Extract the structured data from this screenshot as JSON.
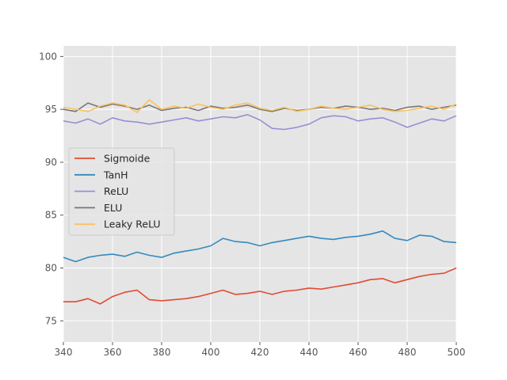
{
  "chart_data": {
    "type": "line",
    "title": "",
    "xlabel": "",
    "ylabel": "",
    "xlim": [
      340,
      500
    ],
    "ylim": [
      73,
      101
    ],
    "grid": true,
    "legend_position": "center-left",
    "background": "#e5e5e5",
    "x_ticks": [
      340,
      360,
      380,
      400,
      420,
      440,
      460,
      480,
      500
    ],
    "y_ticks": [
      75,
      80,
      85,
      90,
      95,
      100
    ],
    "series": [
      {
        "name": "Sigmoide",
        "color": "#e24a33",
        "x": [
          340,
          345,
          350,
          355,
          360,
          365,
          370,
          375,
          380,
          385,
          390,
          395,
          400,
          405,
          410,
          415,
          420,
          425,
          430,
          435,
          440,
          445,
          450,
          455,
          460,
          465,
          470,
          475,
          480,
          485,
          490,
          495,
          500
        ],
        "values": [
          76.8,
          76.8,
          77.1,
          76.6,
          77.3,
          77.7,
          77.9,
          77.0,
          76.9,
          77.0,
          77.1,
          77.3,
          77.6,
          77.9,
          77.5,
          77.6,
          77.8,
          77.5,
          77.8,
          77.9,
          78.1,
          78.0,
          78.2,
          78.4,
          78.6,
          78.9,
          79.0,
          78.6,
          78.9,
          79.2,
          79.4,
          79.5,
          80.0
        ]
      },
      {
        "name": "TanH",
        "color": "#348abd",
        "x": [
          340,
          345,
          350,
          355,
          360,
          365,
          370,
          375,
          380,
          385,
          390,
          395,
          400,
          405,
          410,
          415,
          420,
          425,
          430,
          435,
          440,
          445,
          450,
          455,
          460,
          465,
          470,
          475,
          480,
          485,
          490,
          495,
          500
        ],
        "values": [
          81.0,
          80.6,
          81.0,
          81.2,
          81.3,
          81.1,
          81.5,
          81.2,
          81.0,
          81.4,
          81.6,
          81.8,
          82.1,
          82.8,
          82.5,
          82.4,
          82.1,
          82.4,
          82.6,
          82.8,
          83.0,
          82.8,
          82.7,
          82.9,
          83.0,
          83.2,
          83.5,
          82.8,
          82.6,
          83.1,
          83.0,
          82.5,
          82.4
        ]
      },
      {
        "name": "ReLU",
        "color": "#988ed5",
        "x": [
          340,
          345,
          350,
          355,
          360,
          365,
          370,
          375,
          380,
          385,
          390,
          395,
          400,
          405,
          410,
          415,
          420,
          425,
          430,
          435,
          440,
          445,
          450,
          455,
          460,
          465,
          470,
          475,
          480,
          485,
          490,
          495,
          500
        ],
        "values": [
          93.9,
          93.7,
          94.1,
          93.6,
          94.2,
          93.9,
          93.8,
          93.6,
          93.8,
          94.0,
          94.2,
          93.9,
          94.1,
          94.3,
          94.2,
          94.5,
          94.0,
          93.2,
          93.1,
          93.3,
          93.6,
          94.2,
          94.4,
          94.3,
          93.9,
          94.1,
          94.2,
          93.8,
          93.3,
          93.7,
          94.1,
          93.9,
          94.4
        ]
      },
      {
        "name": "ELU",
        "color": "#777777",
        "x": [
          340,
          345,
          350,
          355,
          360,
          365,
          370,
          375,
          380,
          385,
          390,
          395,
          400,
          405,
          410,
          415,
          420,
          425,
          430,
          435,
          440,
          445,
          450,
          455,
          460,
          465,
          470,
          475,
          480,
          485,
          490,
          495,
          500
        ],
        "values": [
          95.0,
          94.8,
          95.6,
          95.2,
          95.5,
          95.3,
          95.0,
          95.4,
          94.9,
          95.1,
          95.2,
          94.9,
          95.3,
          95.1,
          95.2,
          95.4,
          95.0,
          94.8,
          95.1,
          94.9,
          95.0,
          95.2,
          95.1,
          95.3,
          95.2,
          95.0,
          95.1,
          94.9,
          95.2,
          95.3,
          95.0,
          95.2,
          95.4
        ]
      },
      {
        "name": "Leaky ReLU",
        "color": "#fbc15e",
        "x": [
          340,
          345,
          350,
          355,
          360,
          365,
          370,
          375,
          380,
          385,
          390,
          395,
          400,
          405,
          410,
          415,
          420,
          425,
          430,
          435,
          440,
          445,
          450,
          455,
          460,
          465,
          470,
          475,
          480,
          485,
          490,
          495,
          500
        ],
        "values": [
          95.2,
          95.0,
          94.8,
          95.3,
          95.6,
          95.4,
          94.7,
          95.9,
          95.0,
          95.3,
          95.1,
          95.5,
          95.2,
          95.0,
          95.4,
          95.6,
          95.1,
          94.9,
          95.2,
          94.8,
          95.0,
          95.3,
          95.1,
          95.0,
          95.2,
          95.4,
          95.0,
          94.8,
          94.9,
          95.1,
          95.3,
          95.0,
          95.5
        ]
      }
    ]
  }
}
